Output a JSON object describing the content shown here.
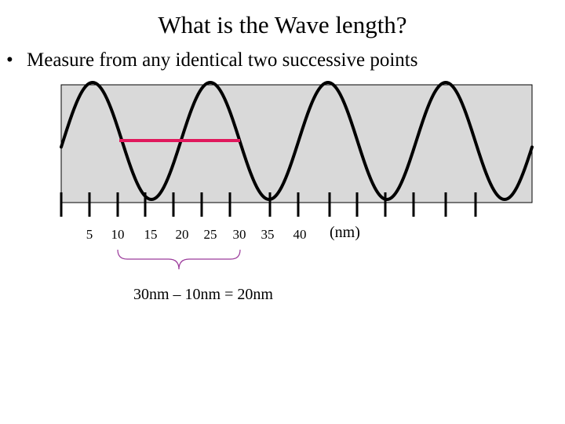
{
  "slide": {
    "title": "What is the Wave length?",
    "bullet": "Measure from any identical two successive points"
  },
  "diagram": {
    "tick_labels": [
      "5",
      "10",
      "15",
      "20",
      "25",
      "30",
      "35",
      "40"
    ],
    "unit_label": "(nm)",
    "equation": "30nm – 10nm = 20nm",
    "colors": {
      "panel_fill": "#d9d9d9",
      "panel_border": "#000000",
      "wave": "#000000",
      "measure_line": "#e0185c",
      "brace": "#9b3a9b"
    }
  }
}
